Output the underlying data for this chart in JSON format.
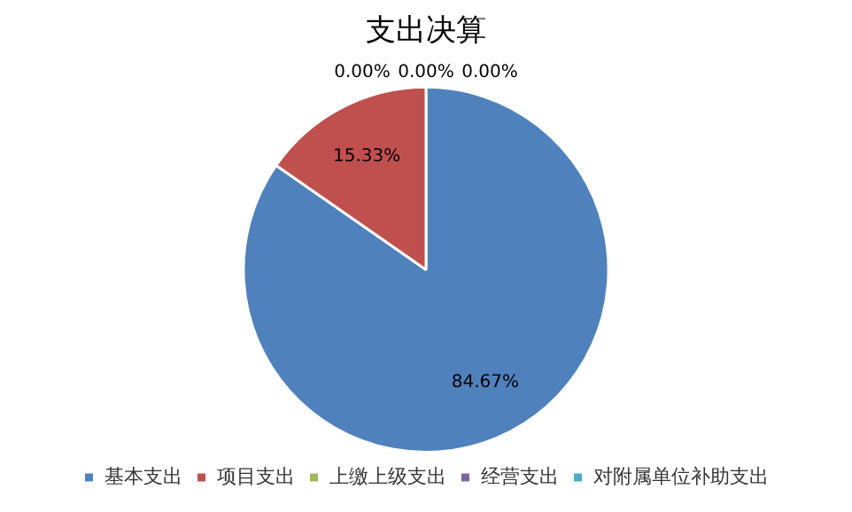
{
  "chart_data": {
    "type": "pie",
    "title": "支出决算",
    "categories": [
      "基本支出",
      "项目支出",
      "上缴上级支出",
      "经营支出",
      "对附属单位补助支出"
    ],
    "values": [
      84.67,
      15.33,
      0,
      0,
      0
    ],
    "colors": [
      "#4f81bd",
      "#c0504d",
      "#9bbb59",
      "#8064a2",
      "#4bacc6"
    ],
    "value_labels": [
      "84.67%",
      "15.33%",
      "0.00%",
      "0.00%",
      "0.00%"
    ],
    "legend": "bottom"
  }
}
